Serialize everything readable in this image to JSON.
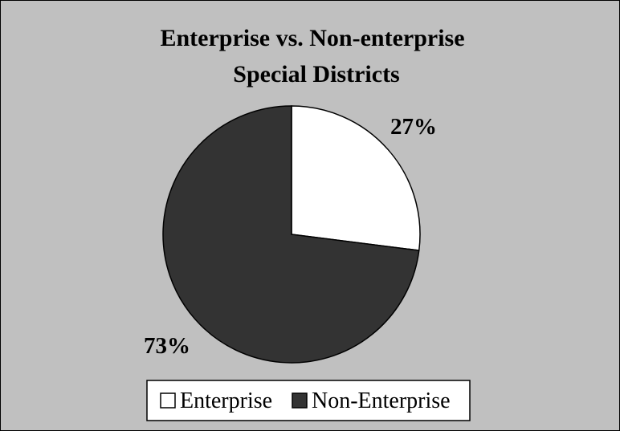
{
  "chart_data": {
    "type": "pie",
    "title": "Enterprise vs. Non-enterprise Special Districts",
    "title_lines": [
      "Enterprise vs. Non-enterprise",
      "Special Districts"
    ],
    "slices": [
      {
        "label": "Enterprise",
        "value": 27,
        "display": "27%",
        "color": "#ffffff"
      },
      {
        "label": "Non-Enterprise",
        "value": 73,
        "display": "73%",
        "color": "#333333"
      }
    ],
    "legend_position": "bottom",
    "background_color": "#c0c0c0"
  }
}
